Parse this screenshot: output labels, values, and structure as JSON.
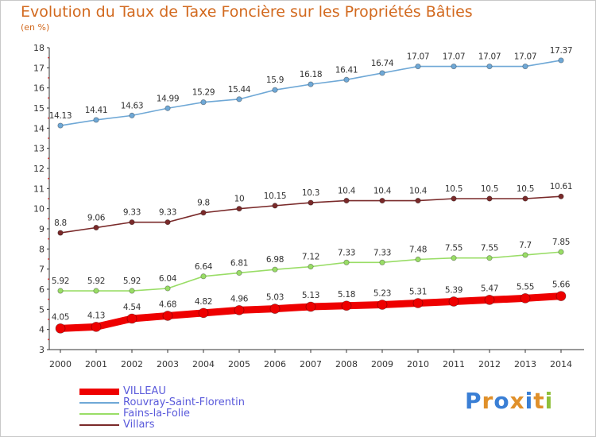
{
  "title": "Evolution du Taux de Taxe Foncière sur les Propriétés Bâties",
  "unit": "(en %)",
  "logo": {
    "text": "Proxiti",
    "colors": [
      "#3a7fd5",
      "#e0902a",
      "#3a7fd5",
      "#e0902a",
      "#3a7fd5",
      "#e0902a",
      "#8fbf3a"
    ]
  },
  "chart_data": {
    "type": "line",
    "title": "Evolution du Taux de Taxe Foncière sur les Propriétés Bâties",
    "ylabel": "(en %)",
    "x": [
      "2000",
      "2001",
      "2002",
      "2003",
      "2004",
      "2005",
      "2006",
      "2007",
      "2008",
      "2009",
      "2010",
      "2011",
      "2012",
      "2013",
      "2014"
    ],
    "ylim": [
      3,
      18
    ],
    "yticks": [
      "3",
      "4",
      "5",
      "6",
      "7",
      "8",
      "9",
      "10",
      "11",
      "12",
      "13",
      "14",
      "15",
      "16",
      "17",
      "18"
    ],
    "grid": false,
    "legend": "bottom-left",
    "series": [
      {
        "name": "VILLEAU",
        "color": "#ee0000",
        "values": [
          4.05,
          4.13,
          4.54,
          4.68,
          4.82,
          4.96,
          5.03,
          5.13,
          5.18,
          5.23,
          5.31,
          5.39,
          5.47,
          5.55,
          5.66
        ],
        "labels": [
          "4.05",
          "4.13",
          "4.54",
          "4.68",
          "4.82",
          "4.96",
          "5.03",
          "5.13",
          "5.18",
          "5.23",
          "5.31",
          "5.39",
          "5.47",
          "5.55",
          "5.66"
        ]
      },
      {
        "name": "Rouvray-Saint-Florentin",
        "color": "#6fa8d6",
        "values": [
          14.13,
          14.41,
          14.63,
          14.99,
          15.29,
          15.44,
          15.9,
          16.18,
          16.41,
          16.74,
          17.07,
          17.07,
          17.07,
          17.07,
          17.37
        ],
        "labels": [
          "14.13",
          "14.41",
          "14.63",
          "14.99",
          "15.29",
          "15.44",
          "15.9",
          "16.18",
          "16.41",
          "16.74",
          "17.07",
          "17.07",
          "17.07",
          "17.07",
          "17.37"
        ]
      },
      {
        "name": "Fains-la-Folie",
        "color": "#99dd66",
        "values": [
          5.92,
          5.92,
          5.92,
          6.04,
          6.64,
          6.81,
          6.98,
          7.12,
          7.33,
          7.33,
          7.48,
          7.55,
          7.55,
          7.7,
          7.85
        ],
        "labels": [
          "5.92",
          "5.92",
          "5.92",
          "6.04",
          "6.64",
          "6.81",
          "6.98",
          "7.12",
          "7.33",
          "7.33",
          "7.48",
          "7.55",
          "7.55",
          "7.7",
          "7.85"
        ]
      },
      {
        "name": "Villars",
        "color": "#7a2a2a",
        "values": [
          8.8,
          9.06,
          9.33,
          9.33,
          9.8,
          10,
          10.15,
          10.3,
          10.4,
          10.4,
          10.4,
          10.5,
          10.5,
          10.5,
          10.61
        ],
        "labels": [
          "8.8",
          "9.06",
          "9.33",
          "9.33",
          "9.8",
          "10",
          "10.15",
          "10.3",
          "10.4",
          "10.4",
          "10.4",
          "10.5",
          "10.5",
          "10.5",
          "10.61"
        ]
      }
    ]
  }
}
